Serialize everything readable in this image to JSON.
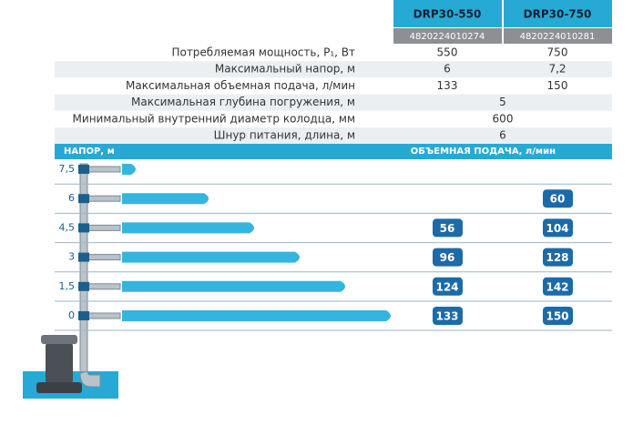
{
  "header": {
    "models": [
      "DRP30-550",
      "DRP30-750"
    ],
    "codes": [
      "4820224010274",
      "4820224010281"
    ]
  },
  "specs": [
    {
      "label": "Потребляемая мощность, P₁, Вт",
      "values": [
        "550",
        "750"
      ]
    },
    {
      "label": "Максимальный напор, м",
      "values": [
        "6",
        "7,2"
      ]
    },
    {
      "label": "Максимальная объемная подача, л/мин",
      "values": [
        "133",
        "150"
      ]
    },
    {
      "label": "Максимальная глубина погружения, м",
      "value": "5"
    },
    {
      "label": "Минимальный внутренний диаметр колодца, мм",
      "value": "600"
    },
    {
      "label": "Шнур питания, длина, м",
      "value": "6"
    }
  ],
  "flow": {
    "head_title": "НАПОР, м",
    "flow_title": "ОБЪЕМНАЯ ПОДАЧА, л/мин",
    "rows": [
      {
        "head": "7,5"
      },
      {
        "head": "6",
        "flow_750": "60"
      },
      {
        "head": "4,5",
        "flow_550": "56",
        "flow_750": "104"
      },
      {
        "head": "3",
        "flow_550": "96",
        "flow_750": "128"
      },
      {
        "head": "1,5",
        "flow_550": "124",
        "flow_750": "142"
      },
      {
        "head": "0",
        "flow_550": "133",
        "flow_750": "150"
      }
    ]
  }
}
